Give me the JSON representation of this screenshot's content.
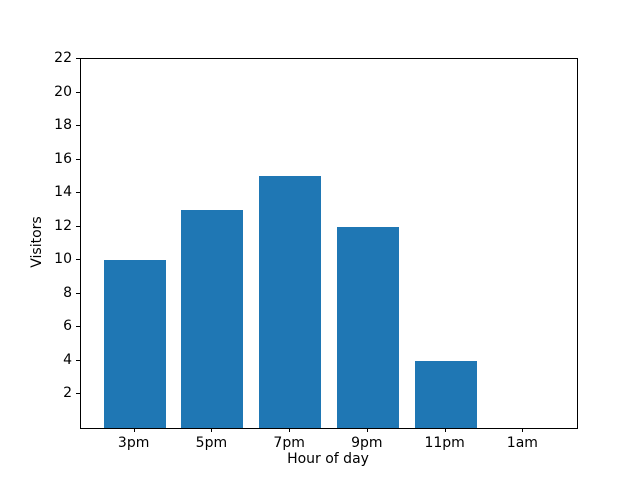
{
  "chart_data": {
    "type": "bar",
    "categories": [
      "3pm",
      "5pm",
      "7pm",
      "9pm",
      "11pm",
      "1am"
    ],
    "values": [
      10,
      13,
      15,
      12,
      4,
      0
    ],
    "title": "",
    "xlabel": "Hour of day",
    "ylabel": "Visitors",
    "ylim": [
      0,
      22
    ],
    "yticks": [
      2,
      4,
      6,
      8,
      10,
      12,
      14,
      16,
      18,
      20,
      22
    ],
    "bar_color": "#1f77b4",
    "bar_width_fraction": 0.8,
    "grid": false,
    "legend_position": "none"
  }
}
